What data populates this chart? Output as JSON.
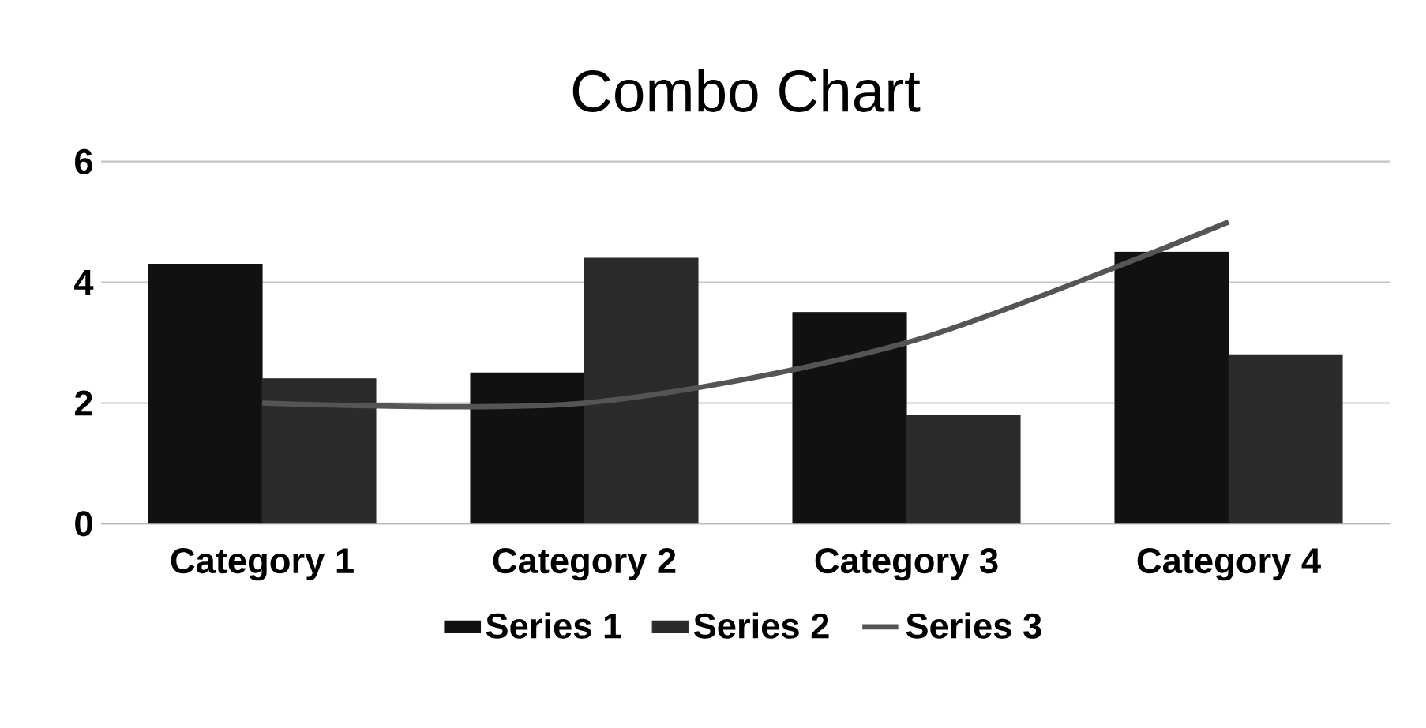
{
  "chart_data": {
    "type": "bar",
    "title": "Combo Chart",
    "categories": [
      "Category 1",
      "Category 2",
      "Category 3",
      "Category 4"
    ],
    "series": [
      {
        "name": "Series 1",
        "color": "#111111",
        "values": [
          4.3,
          2.5,
          3.5,
          4.5
        ]
      },
      {
        "name": "Series 2",
        "color": "#2b2b2b",
        "values": [
          2.4,
          4.4,
          1.8,
          2.8
        ]
      },
      {
        "name": "Series 3",
        "color": "#555555",
        "type": "line",
        "values": [
          2,
          2,
          3,
          5
        ]
      }
    ],
    "ylim": [
      0,
      6
    ],
    "yticks": [
      0,
      2,
      4,
      6
    ],
    "grid": "y",
    "legend": "bottom"
  }
}
